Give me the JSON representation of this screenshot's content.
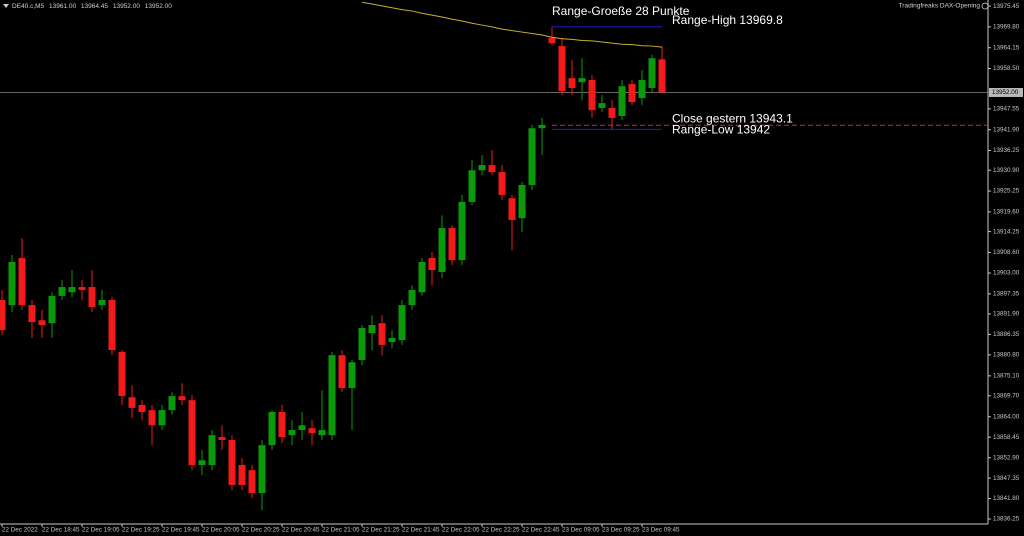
{
  "chart_data": {
    "type": "candlestick",
    "header": {
      "symbol": "DE40.c,M5",
      "values": [
        13961,
        13964.45,
        13952,
        13952
      ],
      "value_labels": [
        "13961.00",
        "13964.45",
        "13952.00",
        "13952.00"
      ]
    },
    "indicator_name": "Tradingfreaks DAX-Opening",
    "title": "Range-Groeße 28 Punkte",
    "categories": [
      "22 Dec 2022",
      null,
      null,
      null,
      "22 Dec 18:45",
      null,
      null,
      null,
      "22 Dec 19:05",
      null,
      null,
      null,
      "22 Dec 19:25",
      null,
      null,
      null,
      "22 Dec 19:45",
      null,
      null,
      null,
      "22 Dec 20:05",
      null,
      null,
      null,
      "22 Dec 20:25",
      null,
      null,
      null,
      "22 Dec 20:45",
      null,
      null,
      null,
      "22 Dec 21:05",
      null,
      null,
      null,
      "22 Dec 21:25",
      null,
      null,
      null,
      "22 Dec 21:45",
      null,
      null,
      null,
      "22 Dec 22:05",
      null,
      null,
      null,
      "22 Dec 22:25",
      null,
      null,
      null,
      "22 Dec 22:45",
      null,
      null,
      null,
      "23 Dec 09:05",
      null,
      null,
      null,
      "23 Dec 09:25",
      null,
      null,
      null,
      "23 Dec 09:45",
      null,
      null
    ],
    "open": [
      13895.7,
      13894.3,
      13907.1,
      13894.3,
      13890.2,
      13889.4,
      13896.8,
      13897.8,
      13899.2,
      13899.2,
      13894.3,
      13895.7,
      13881.6,
      13869.3,
      13867.2,
      13865.8,
      13861.7,
      13865.8,
      13869.6,
      13868.5,
      13850.9,
      13850.9,
      13858.5,
      13857.7,
      13850.9,
      13849.5,
      13843.3,
      13856.3,
      13865.3,
      13859.0,
      13860.4,
      13860.9,
      13859.0,
      13859.0,
      13880.7,
      13871.8,
      13879.4,
      13886.7,
      13889.4,
      13884.3,
      13884.8,
      13894.3,
      13897.8,
      13907.1,
      13903.3,
      13915.2,
      13906.5,
      13922.3,
      13930.9,
      13932.3,
      13930.4,
      13923.3,
      13917.9,
      13926.9,
      13942.3,
      13966.8,
      13964.6,
      13955.9,
      13954.8,
      13955.4,
      13947.8,
      13947.8,
      13945.6,
      13954.3,
      13950.5,
      13953.2,
      13961
    ],
    "high": [
      13898.4,
      13907.9,
      13912.5,
      13895.7,
      13893.0,
      13897.8,
      13901.1,
      13903.8,
      13901.1,
      13903.8,
      13898.4,
      13896.5,
      13882.1,
      13872.6,
      13868.5,
      13867.2,
      13867.2,
      13870.7,
      13873.1,
      13869.9,
      13855.0,
      13860.4,
      13861.7,
      13859.0,
      13852.8,
      13850.9,
      13857.7,
      13865.8,
      13867.2,
      13863.1,
      13865.3,
      13863.1,
      13871.2,
      13881.6,
      13882.1,
      13879.4,
      13888.9,
      13891.6,
      13891.6,
      13887.5,
      13895.7,
      13899.7,
      13907.1,
      13908.7,
      13918.7,
      13916.0,
      13924.2,
      13933.7,
      13935.0,
      13936.4,
      13932.3,
      13924.2,
      13927.7,
      13943.2,
      13945.1,
      13969.8,
      13966.8,
      13960.8,
      13961.3,
      13956.7,
      13951.3,
      13949.9,
      13955.4,
      13955.4,
      13958.1,
      13962.2,
      13964.45
    ],
    "low": [
      13886.2,
      13892.4,
      13893.0,
      13885.4,
      13885.4,
      13885.4,
      13895.7,
      13896.5,
      13895.7,
      13892.4,
      13893.0,
      13880.7,
      13867.2,
      13863.6,
      13863.1,
      13856.3,
      13860.4,
      13864.5,
      13867.2,
      13849.5,
      13848.2,
      13849.5,
      13855.0,
      13844.1,
      13844.1,
      13841.9,
      13838.7,
      13855.0,
      13856.9,
      13856.3,
      13857.7,
      13856.3,
      13857.7,
      13857.7,
      13870.7,
      13860.4,
      13878.0,
      13882.1,
      13880.7,
      13882.6,
      13883.5,
      13893.0,
      13896.8,
      13899.7,
      13901.6,
      13905.2,
      13905.2,
      13921.4,
      13929.6,
      13929.6,
      13922.8,
      13909.2,
      13914.1,
      13925.5,
      13935.0,
      13964.9,
      13951.3,
      13951.3,
      13949.9,
      13945.1,
      13946.7,
      13942.0,
      13944.5,
      13948.6,
      13948.6,
      13952.1,
      13952
    ],
    "close": [
      13887.5,
      13906.0,
      13894.3,
      13889.7,
      13888.9,
      13896.8,
      13899.2,
      13899.2,
      13898.4,
      13893.8,
      13895.7,
      13882.1,
      13869.6,
      13866.4,
      13865.3,
      13861.7,
      13865.8,
      13869.6,
      13868.5,
      13850.9,
      13852.2,
      13859.0,
      13857.7,
      13845.5,
      13845.5,
      13843.3,
      13856.3,
      13865.3,
      13858.5,
      13860.4,
      13861.7,
      13859.6,
      13860.4,
      13880.7,
      13871.8,
      13878.8,
      13888.1,
      13888.9,
      13883.5,
      13885.4,
      13894.3,
      13898.4,
      13906.0,
      13903.8,
      13915.2,
      13906.5,
      13922.3,
      13930.9,
      13932.3,
      13930.4,
      13924.2,
      13917.4,
      13926.9,
      13942.3,
      13943.2,
      13965.4,
      13952.4,
      13953.2,
      13955.9,
      13947.2,
      13949.1,
      13945.1,
      13953.7,
      13949.4,
      13955.4,
      13961.3,
      13952
    ],
    "up_color": "#0b9a0b",
    "down_color": "#f21a1a",
    "ma": {
      "color": "#c8b030",
      "values": [
        null,
        null,
        null,
        null,
        null,
        null,
        null,
        null,
        null,
        null,
        null,
        null,
        null,
        null,
        null,
        null,
        null,
        null,
        null,
        null,
        null,
        null,
        null,
        null,
        null,
        null,
        null,
        null,
        null,
        null,
        null,
        null,
        null,
        null,
        null,
        null,
        13976.5,
        13976.0,
        13975.5,
        13975.0,
        13974.5,
        13974.1,
        13973.5,
        13973.0,
        13972.5,
        13971.9,
        13971.4,
        13970.8,
        13970.3,
        13969.8,
        13969.2,
        13968.8,
        13968.4,
        13968.0,
        13967.6,
        13967.0,
        13966.6,
        13966.4,
        13966.1,
        13966.0,
        13965.7,
        13965.4,
        13965.1,
        13965.0,
        13964.7,
        13964.6,
        13964.3
      ]
    },
    "levels": [
      {
        "label": "Range-High 13969.8",
        "value": 13969.8,
        "color": "#1a1ad0",
        "start": 55
      },
      {
        "label": "Close gestern 13943.1",
        "value": 13943.1,
        "color": "#b0305a",
        "start": 55,
        "dashed": true,
        "extend": true
      },
      {
        "label": "Range-Low 13942",
        "value": 13942,
        "color": "#1a1ad0",
        "start": 55
      }
    ],
    "price_line": {
      "value": 13952,
      "label": "13952.00"
    },
    "ylim": [
      13834.9,
      13977.1
    ],
    "yticks": [
      13975.45,
      {
        "value": 13969.8,
        "label": "13969.80"
      },
      13964.15,
      {
        "value": 13958.5,
        "label": "13958.50"
      },
      13947.55,
      {
        "value": 13941.9,
        "label": "13941.90"
      },
      13936.25,
      {
        "value": 13930.9,
        "label": "13930.90"
      },
      13925.25,
      {
        "value": 13919.6,
        "label": "13919.60"
      },
      13914.25,
      {
        "value": 13908.6,
        "label": "13908.60"
      },
      {
        "value": 13903,
        "label": "13903.00"
      },
      13897.35,
      {
        "value": 13891.9,
        "label": "13891.90"
      },
      13886.35,
      {
        "value": 13880.8,
        "label": "13880.80"
      },
      {
        "value": 13875.1,
        "label": "13875.10"
      },
      {
        "value": 13869.7,
        "label": "13869.70"
      },
      {
        "value": 13864,
        "label": "13864.00"
      },
      13858.45,
      {
        "value": 13852.9,
        "label": "13852.90"
      },
      13847.35,
      {
        "value": 13841.8,
        "label": "13841.80"
      },
      13836.25
    ]
  }
}
